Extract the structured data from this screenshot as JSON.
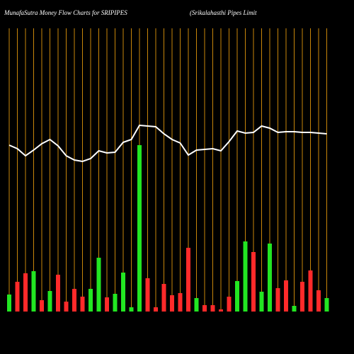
{
  "chart_data": {
    "type": "money-flow",
    "title": "MunafaSutra  Money Flow  Charts for SRIPIPES",
    "subtitle": "(Srikalahasthi  Pipes Limit",
    "ylim": [
      0,
      400
    ],
    "up_color": "#22e622",
    "down_color": "#ff2a2a",
    "line_color": "#ffffff",
    "grid_color": "#c8860a",
    "bars": {
      "values": [
        24,
        42,
        54,
        57,
        16,
        29,
        52,
        14,
        32,
        21,
        32,
        76,
        20,
        25,
        55,
        6,
        235,
        47,
        6,
        39,
        23,
        26,
        90,
        19,
        9,
        9,
        3,
        21,
        43,
        99,
        84,
        28,
        96,
        33,
        44,
        8,
        42,
        58,
        30,
        19
      ],
      "direction": [
        "up",
        "down",
        "down",
        "up",
        "down",
        "up",
        "down",
        "down",
        "down",
        "down",
        "up",
        "up",
        "down",
        "up",
        "up",
        "up",
        "up",
        "down",
        "down",
        "down",
        "down",
        "down",
        "down",
        "up",
        "down",
        "down",
        "down",
        "down",
        "up",
        "up",
        "down",
        "up",
        "up",
        "down",
        "down",
        "up",
        "down",
        "down",
        "down",
        "up"
      ]
    },
    "line": {
      "values": [
        235,
        230,
        220,
        228,
        237,
        243,
        234,
        220,
        214,
        212,
        216,
        227,
        224,
        225,
        239,
        243,
        263,
        262,
        261,
        251,
        243,
        238,
        221,
        228,
        229,
        230,
        227,
        240,
        255,
        252,
        253,
        262,
        259,
        253,
        254,
        254,
        253,
        253,
        252,
        251
      ]
    }
  }
}
